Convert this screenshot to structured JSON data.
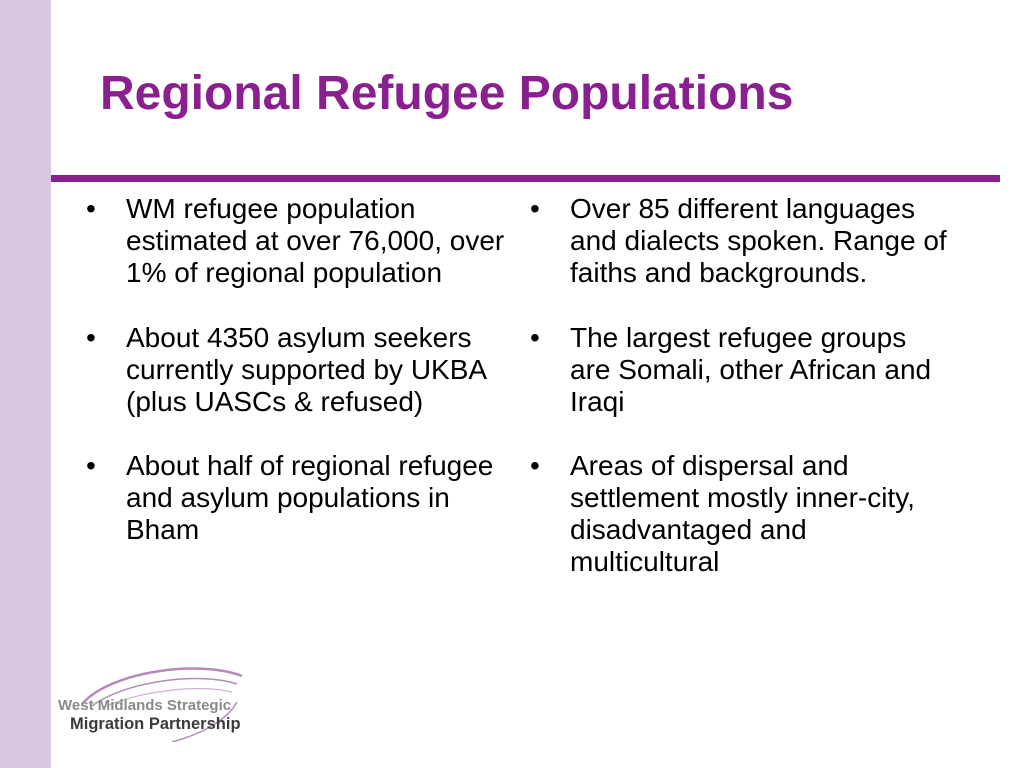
{
  "slide": {
    "title": "Regional Refugee Populations",
    "bullet_glyph": "•",
    "left_bullets": [
      "WM refugee population estimated at over 76,000, over 1% of regional population",
      "About 4350 asylum seekers currently supported by UKBA (plus UASCs & refused)",
      "About half of regional refugee and asylum populations in Bham"
    ],
    "right_bullets": [
      "Over 85 different languages and dialects spoken. Range of faiths and backgrounds.",
      "The largest refugee groups are Somali, other African and Iraqi",
      "Areas of dispersal and settlement mostly inner-city, disadvantaged and multicultural"
    ]
  },
  "logo": {
    "line1": "West Midlands Strategic",
    "line2": "Migration Partnership"
  },
  "colors": {
    "accent": "#8a1f8f",
    "side_band": "#d9c6e0",
    "logo_swoosh": "#b58ab8"
  }
}
